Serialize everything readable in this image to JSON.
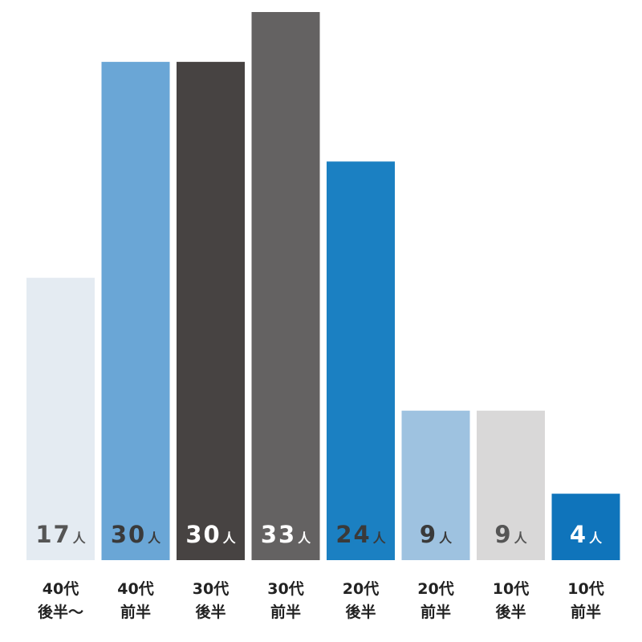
{
  "chart_data": {
    "type": "bar",
    "unit": "人",
    "categories": [
      [
        "40代",
        "後半〜"
      ],
      [
        "40代",
        "前半"
      ],
      [
        "30代",
        "後半"
      ],
      [
        "30代",
        "前半"
      ],
      [
        "20代",
        "後半"
      ],
      [
        "20代",
        "前半"
      ],
      [
        "10代",
        "後半"
      ],
      [
        "10代",
        "前半"
      ]
    ],
    "values": [
      17,
      30,
      30,
      33,
      24,
      9,
      9,
      4
    ],
    "bar_colors": [
      "#e4ebf2",
      "#6aa6d6",
      "#474342",
      "#646262",
      "#1b80c2",
      "#9ec2e0",
      "#d9d8d8",
      "#0f74bb"
    ],
    "label_colors": [
      "#555555",
      "#3a3a3a",
      "#ffffff",
      "#ffffff",
      "#3a3a3a",
      "#3a3a3a",
      "#555555",
      "#ffffff"
    ],
    "ylim": [
      0,
      33
    ],
    "title": "",
    "xlabel": "",
    "ylabel": ""
  }
}
